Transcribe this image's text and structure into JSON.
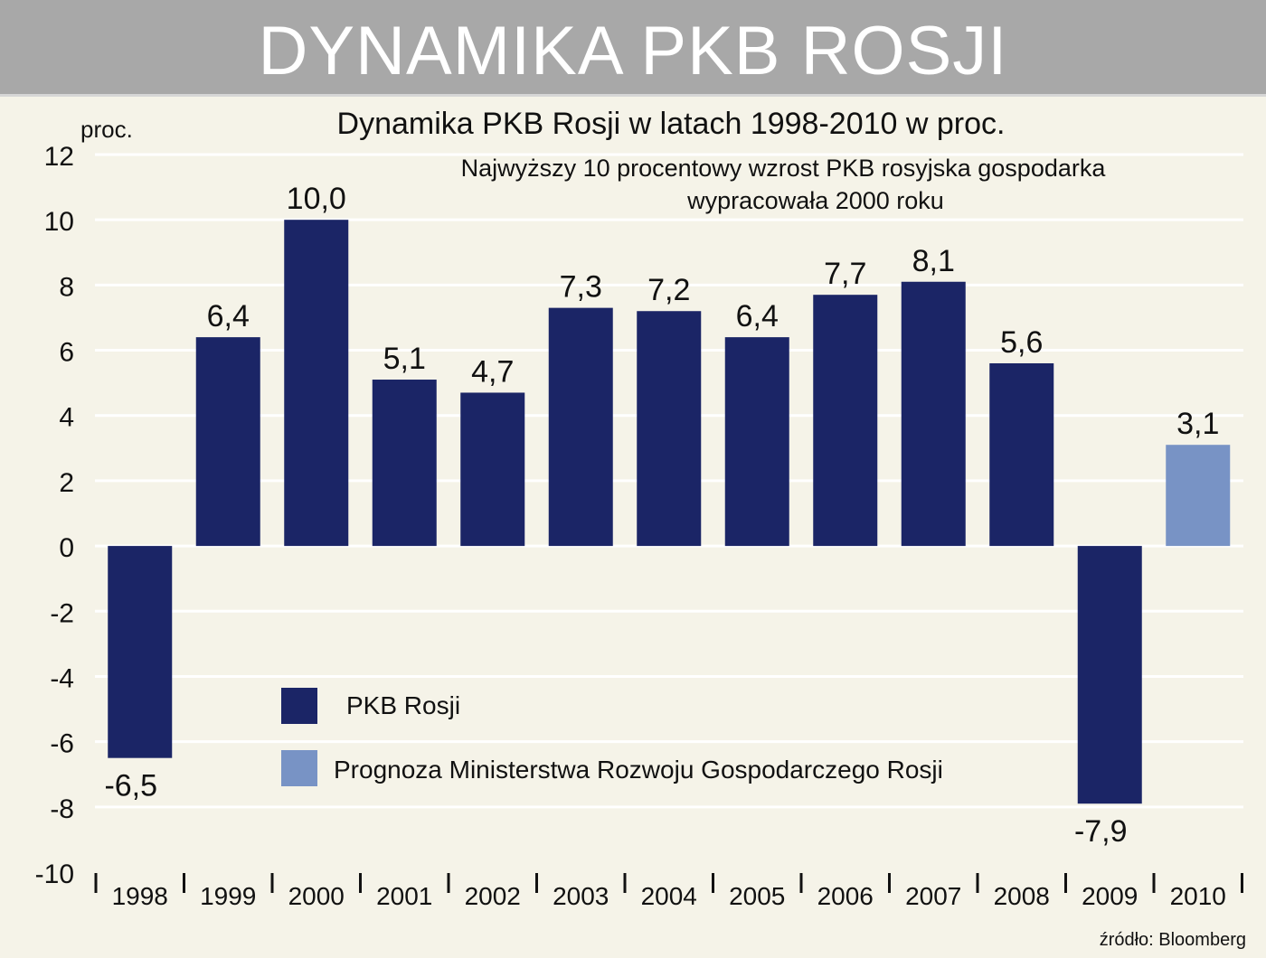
{
  "header": {
    "title": "DYNAMIKA PKB ROSJI"
  },
  "chart_data": {
    "type": "bar",
    "title": "Dynamika PKB Rosji w latach 1998-2010 w proc.",
    "subtitle_lines": [
      "Najwyższy 10 procentowy wzrost PKB rosyjska gospodarka",
      "wypracowała 2000 roku"
    ],
    "ylabel": "proc.",
    "ylim": [
      -10,
      12
    ],
    "yticks": [
      "12",
      "10",
      "8",
      "6",
      "4",
      "2",
      "0",
      "-2",
      "-4",
      "-6",
      "-8",
      "-10"
    ],
    "ytick_values": [
      12,
      10,
      8,
      6,
      4,
      2,
      0,
      -2,
      -4,
      -6,
      -8,
      -10
    ],
    "categories": [
      "1998",
      "1999",
      "2000",
      "2001",
      "2002",
      "2003",
      "2004",
      "2005",
      "2006",
      "2007",
      "2008",
      "2009",
      "2010"
    ],
    "values": [
      -6.5,
      6.4,
      10.0,
      5.1,
      4.7,
      7.3,
      7.2,
      6.4,
      7.7,
      8.1,
      5.6,
      -7.9,
      3.1
    ],
    "value_labels": [
      "-6,5",
      "6,4",
      "10,0",
      "5,1",
      "4,7",
      "7,3",
      "7,2",
      "6,4",
      "7,7",
      "8,1",
      "5,6",
      "-7,9",
      "3,1"
    ],
    "series_assignment": [
      "actual",
      "actual",
      "actual",
      "actual",
      "actual",
      "actual",
      "actual",
      "actual",
      "actual",
      "actual",
      "actual",
      "actual",
      "forecast"
    ],
    "series": [
      {
        "key": "actual",
        "name": "PKB Rosji",
        "color": "#1b2566"
      },
      {
        "key": "forecast",
        "name": "Prognoza Ministerstwa Rozwoju Gospodarczego Rosji",
        "color": "#7893c5"
      }
    ],
    "grid": true,
    "legend_position": "lower-center",
    "source": "źródło: Bloomberg"
  },
  "colors": {
    "background": "#f5f3e8",
    "banner": "#a8a8a8",
    "grid": "#ffffff"
  }
}
